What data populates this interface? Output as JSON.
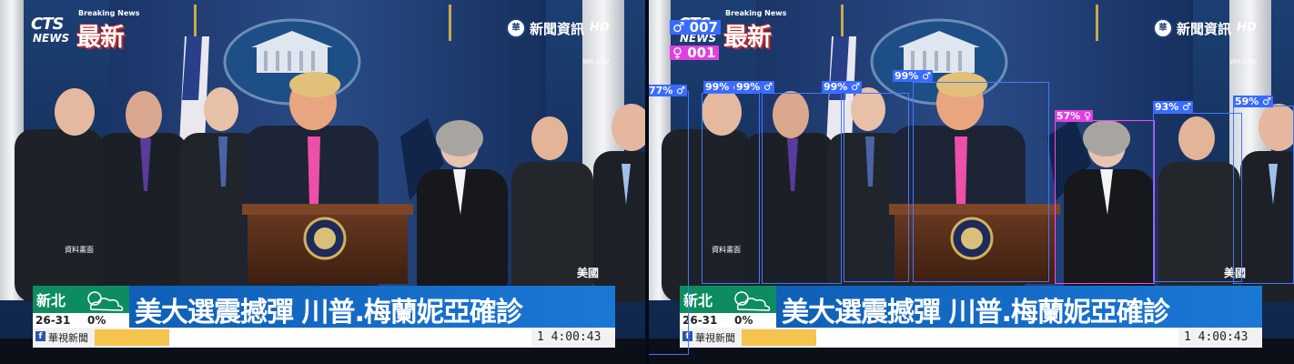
{
  "broadcast": {
    "cts_logo": "CTS",
    "cts_logo_sub": "NEWS",
    "breaking_label": "Breaking News",
    "breaking_chinese": "最新",
    "channel_name": "新聞資訊",
    "channel_hd": "HD",
    "seal_text": "WH.GOV",
    "file_footage": "資料畫面",
    "location": "美國",
    "weather": {
      "city": "新北",
      "temperature": "26-31",
      "rain_chance": "0%",
      "icon": "partly-cloudy-icon"
    },
    "headline": "美大選震撼彈 川普.梅蘭妮亞確診",
    "facebook_icon": "facebook-icon",
    "facebook_page": "華視新聞",
    "progress_fraction": 0.17,
    "clock": "1 4:00:43"
  },
  "detection": {
    "male_count": "♂ 007",
    "female_count": "♀ 001",
    "labels": [
      {
        "text": "77% ♂",
        "gender": "male"
      },
      {
        "text": "99% ♂",
        "gender": "male"
      },
      {
        "text": "99% ♂",
        "gender": "male"
      },
      {
        "text": "99% ♂",
        "gender": "male"
      },
      {
        "text": "99% ♂",
        "gender": "male"
      },
      {
        "text": "57% ♀",
        "gender": "female"
      },
      {
        "text": "93% ♂",
        "gender": "male"
      },
      {
        "text": "59% ♂",
        "gender": "male"
      }
    ]
  },
  "colors": {
    "male_box": "#3a6bff",
    "female_box": "#e040e0",
    "ticker_green": "#0d8d5f",
    "headline_blue": "#1a78d5",
    "progress_yellow": "#f4c44f"
  }
}
